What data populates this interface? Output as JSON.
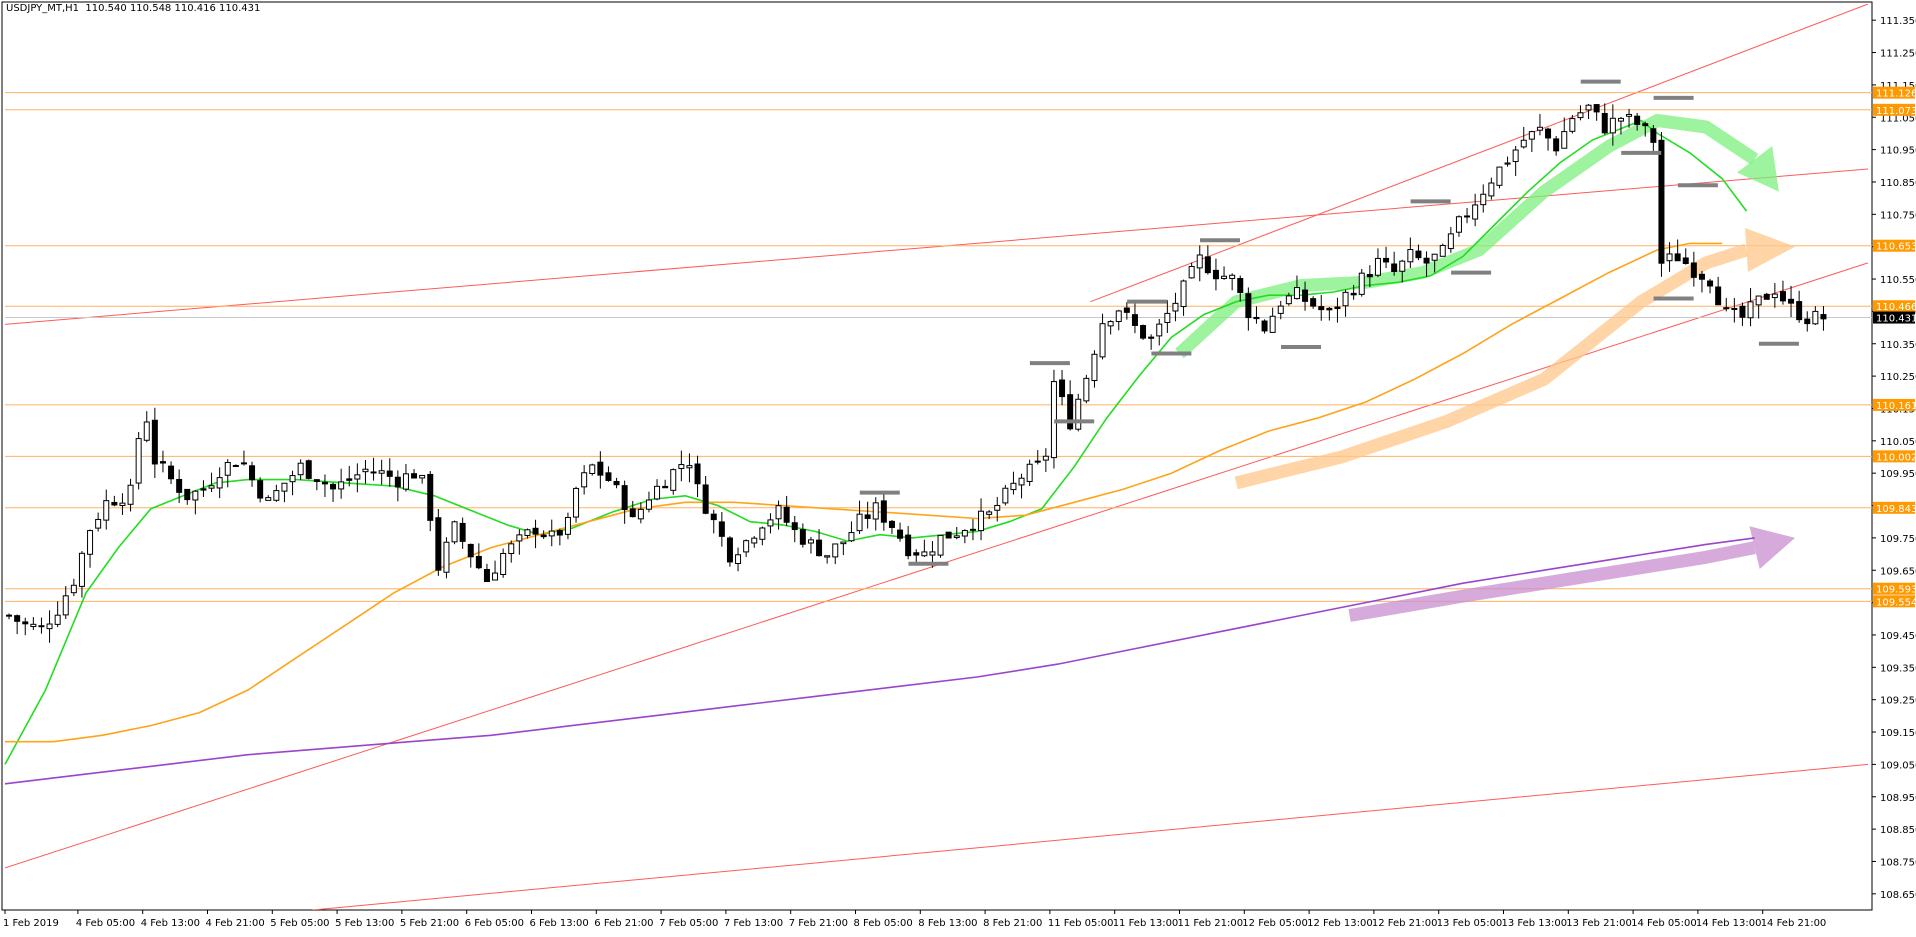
{
  "header": {
    "symbol": "USDJPY_MT,H1",
    "ohlc": "110.540 110.548 110.416 110.431"
  },
  "colors": {
    "background": "#ffffff",
    "candle": "#000000",
    "ma_fast": "#22dd22",
    "ma_mid": "#ffa31a",
    "ma_slow": "#9a44cc",
    "channel": "#ff5a5a",
    "level": "#ffb060",
    "level_tag": "#ff9900",
    "price_tag": "#000000",
    "grid_text": "#000000",
    "arrow_green": "#7ef07e",
    "arrow_orange": "#ffc78a",
    "arrow_purple": "#c88fd0",
    "swing_marker": "#808080"
  },
  "chart_data": {
    "type": "candlestick",
    "title": "USDJPY_MT,H1",
    "ylim": [
      108.6,
      111.4
    ],
    "y_ticks": [
      "111.350",
      "111.250",
      "111.150",
      "111.050",
      "110.950",
      "110.850",
      "110.750",
      "110.650",
      "110.550",
      "110.450",
      "110.350",
      "110.250",
      "110.150",
      "110.050",
      "109.950",
      "109.850",
      "109.750",
      "109.650",
      "109.550",
      "109.450",
      "109.350",
      "109.250",
      "109.150",
      "109.050",
      "108.950",
      "108.850",
      "108.750",
      "108.650"
    ],
    "x_ticks": [
      {
        "label": "1 Feb 2019",
        "t": 0
      },
      {
        "label": "4 Feb 05:00",
        "t": 9
      },
      {
        "label": "4 Feb 13:00",
        "t": 17
      },
      {
        "label": "4 Feb 21:00",
        "t": 25
      },
      {
        "label": "5 Feb 05:00",
        "t": 33
      },
      {
        "label": "5 Feb 13:00",
        "t": 41
      },
      {
        "label": "5 Feb 21:00",
        "t": 49
      },
      {
        "label": "6 Feb 05:00",
        "t": 57
      },
      {
        "label": "6 Feb 13:00",
        "t": 65
      },
      {
        "label": "6 Feb 21:00",
        "t": 73
      },
      {
        "label": "7 Feb 05:00",
        "t": 81
      },
      {
        "label": "7 Feb 13:00",
        "t": 89
      },
      {
        "label": "7 Feb 21:00",
        "t": 97
      },
      {
        "label": "8 Feb 05:00",
        "t": 105
      },
      {
        "label": "8 Feb 13:00",
        "t": 113
      },
      {
        "label": "8 Feb 21:00",
        "t": 121
      },
      {
        "label": "11 Feb 05:00",
        "t": 129
      },
      {
        "label": "11 Feb 13:00",
        "t": 137
      },
      {
        "label": "11 Feb 21:00",
        "t": 145
      },
      {
        "label": "12 Feb 05:00",
        "t": 153
      },
      {
        "label": "12 Feb 13:00",
        "t": 161
      },
      {
        "label": "12 Feb 21:00",
        "t": 169
      },
      {
        "label": "13 Feb 05:00",
        "t": 177
      },
      {
        "label": "13 Feb 13:00",
        "t": 185
      },
      {
        "label": "13 Feb 21:00",
        "t": 193
      },
      {
        "label": "14 Feb 05:00",
        "t": 201
      },
      {
        "label": "14 Feb 13:00",
        "t": 209
      },
      {
        "label": "14 Feb 21:00",
        "t": 217
      }
    ],
    "last_t": 224,
    "close_anchors": [
      [
        0,
        109.51
      ],
      [
        2,
        109.48
      ],
      [
        4,
        109.47
      ],
      [
        6,
        109.53
      ],
      [
        8,
        109.62
      ],
      [
        10,
        109.78
      ],
      [
        12,
        109.86
      ],
      [
        15,
        109.89
      ],
      [
        16,
        110.06
      ],
      [
        17,
        110.12
      ],
      [
        18,
        109.99
      ],
      [
        20,
        109.93
      ],
      [
        22,
        109.88
      ],
      [
        24,
        109.9
      ],
      [
        26,
        109.96
      ],
      [
        28,
        109.99
      ],
      [
        29,
        109.98
      ],
      [
        30,
        109.93
      ],
      [
        32,
        109.86
      ],
      [
        34,
        109.92
      ],
      [
        36,
        109.97
      ],
      [
        38,
        109.94
      ],
      [
        40,
        109.9
      ],
      [
        42,
        109.93
      ],
      [
        44,
        109.96
      ],
      [
        46,
        109.95
      ],
      [
        48,
        109.93
      ],
      [
        50,
        109.95
      ],
      [
        51,
        109.92
      ],
      [
        52,
        109.82
      ],
      [
        53,
        109.66
      ],
      [
        55,
        109.78
      ],
      [
        57,
        109.7
      ],
      [
        59,
        109.62
      ],
      [
        61,
        109.7
      ],
      [
        63,
        109.74
      ],
      [
        65,
        109.78
      ],
      [
        67,
        109.75
      ],
      [
        69,
        109.79
      ],
      [
        70,
        109.9
      ],
      [
        72,
        109.97
      ],
      [
        74,
        109.93
      ],
      [
        76,
        109.86
      ],
      [
        77,
        109.8
      ],
      [
        79,
        109.88
      ],
      [
        81,
        109.93
      ],
      [
        83,
        109.98
      ],
      [
        84,
        109.99
      ],
      [
        85,
        109.9
      ],
      [
        87,
        109.8
      ],
      [
        89,
        109.7
      ],
      [
        91,
        109.74
      ],
      [
        93,
        109.8
      ],
      [
        95,
        109.83
      ],
      [
        97,
        109.77
      ],
      [
        99,
        109.73
      ],
      [
        101,
        109.7
      ],
      [
        103,
        109.74
      ],
      [
        105,
        109.8
      ],
      [
        107,
        109.84
      ],
      [
        109,
        109.79
      ],
      [
        111,
        109.72
      ],
      [
        113,
        109.7
      ],
      [
        115,
        109.75
      ],
      [
        117,
        109.77
      ],
      [
        119,
        109.8
      ],
      [
        121,
        109.82
      ],
      [
        123,
        109.88
      ],
      [
        125,
        109.94
      ],
      [
        127,
        109.97
      ],
      [
        128,
        110.01
      ],
      [
        129,
        110.23
      ],
      [
        130,
        110.17
      ],
      [
        131,
        110.11
      ],
      [
        133,
        110.25
      ],
      [
        135,
        110.42
      ],
      [
        137,
        110.46
      ],
      [
        139,
        110.4
      ],
      [
        141,
        110.36
      ],
      [
        143,
        110.44
      ],
      [
        145,
        110.52
      ],
      [
        147,
        110.61
      ],
      [
        149,
        110.57
      ],
      [
        151,
        110.55
      ],
      [
        153,
        110.45
      ],
      [
        155,
        110.4
      ],
      [
        157,
        110.48
      ],
      [
        159,
        110.5
      ],
      [
        161,
        110.47
      ],
      [
        163,
        110.44
      ],
      [
        165,
        110.5
      ],
      [
        167,
        110.55
      ],
      [
        169,
        110.6
      ],
      [
        171,
        110.57
      ],
      [
        173,
        110.62
      ],
      [
        175,
        110.6
      ],
      [
        177,
        110.63
      ],
      [
        179,
        110.72
      ],
      [
        181,
        110.79
      ],
      [
        183,
        110.86
      ],
      [
        185,
        110.92
      ],
      [
        187,
        110.98
      ],
      [
        189,
        111.01
      ],
      [
        191,
        110.96
      ],
      [
        193,
        111.05
      ],
      [
        195,
        111.08
      ],
      [
        197,
        111.02
      ],
      [
        199,
        111.05
      ],
      [
        201,
        111.03
      ],
      [
        203,
        110.98
      ],
      [
        204,
        110.6
      ],
      [
        206,
        110.62
      ],
      [
        208,
        110.58
      ],
      [
        210,
        110.55
      ],
      [
        212,
        110.44
      ],
      [
        214,
        110.43
      ],
      [
        216,
        110.48
      ],
      [
        218,
        110.52
      ],
      [
        220,
        110.46
      ],
      [
        222,
        110.43
      ],
      [
        224,
        110.431
      ]
    ],
    "series": [
      {
        "name": "",
        "color": "#22dd22",
        "points": [
          [
            0,
            109.05
          ],
          [
            5,
            109.28
          ],
          [
            10,
            109.58
          ],
          [
            14,
            109.72
          ],
          [
            18,
            109.84
          ],
          [
            22,
            109.88
          ],
          [
            26,
            109.92
          ],
          [
            30,
            109.93
          ],
          [
            36,
            109.93
          ],
          [
            42,
            109.92
          ],
          [
            48,
            109.91
          ],
          [
            53,
            109.88
          ],
          [
            57,
            109.84
          ],
          [
            62,
            109.79
          ],
          [
            66,
            109.76
          ],
          [
            70,
            109.78
          ],
          [
            75,
            109.83
          ],
          [
            80,
            109.87
          ],
          [
            84,
            109.88
          ],
          [
            88,
            109.85
          ],
          [
            92,
            109.8
          ],
          [
            96,
            109.79
          ],
          [
            100,
            109.77
          ],
          [
            104,
            109.74
          ],
          [
            108,
            109.76
          ],
          [
            112,
            109.75
          ],
          [
            116,
            109.76
          ],
          [
            120,
            109.77
          ],
          [
            124,
            109.8
          ],
          [
            128,
            109.84
          ],
          [
            132,
            109.97
          ],
          [
            136,
            110.12
          ],
          [
            140,
            110.25
          ],
          [
            144,
            110.37
          ],
          [
            148,
            110.44
          ],
          [
            152,
            110.48
          ],
          [
            156,
            110.5
          ],
          [
            160,
            110.5
          ],
          [
            164,
            110.51
          ],
          [
            168,
            110.53
          ],
          [
            172,
            110.54
          ],
          [
            176,
            110.56
          ],
          [
            180,
            110.62
          ],
          [
            184,
            110.72
          ],
          [
            188,
            110.82
          ],
          [
            192,
            110.91
          ],
          [
            196,
            110.98
          ],
          [
            200,
            111.02
          ],
          [
            202,
            111.04
          ],
          [
            204,
            111.0
          ],
          [
            208,
            110.94
          ],
          [
            212,
            110.86
          ],
          [
            215,
            110.76
          ]
        ]
      },
      {
        "name": "",
        "color": "#ffa31a",
        "points": [
          [
            0,
            109.12
          ],
          [
            6,
            109.12
          ],
          [
            12,
            109.14
          ],
          [
            18,
            109.17
          ],
          [
            24,
            109.21
          ],
          [
            30,
            109.28
          ],
          [
            36,
            109.38
          ],
          [
            42,
            109.48
          ],
          [
            48,
            109.58
          ],
          [
            54,
            109.66
          ],
          [
            60,
            109.72
          ],
          [
            66,
            109.76
          ],
          [
            72,
            109.8
          ],
          [
            78,
            109.84
          ],
          [
            84,
            109.86
          ],
          [
            90,
            109.86
          ],
          [
            96,
            109.85
          ],
          [
            102,
            109.84
          ],
          [
            108,
            109.83
          ],
          [
            114,
            109.82
          ],
          [
            120,
            109.81
          ],
          [
            126,
            109.82
          ],
          [
            132,
            109.86
          ],
          [
            138,
            109.9
          ],
          [
            144,
            109.95
          ],
          [
            150,
            110.02
          ],
          [
            156,
            110.08
          ],
          [
            162,
            110.12
          ],
          [
            168,
            110.17
          ],
          [
            174,
            110.24
          ],
          [
            180,
            110.32
          ],
          [
            186,
            110.41
          ],
          [
            192,
            110.49
          ],
          [
            198,
            110.57
          ],
          [
            204,
            110.64
          ],
          [
            208,
            110.66
          ],
          [
            212,
            110.66
          ]
        ]
      },
      {
        "name": "",
        "color": "#9a44cc",
        "points": [
          [
            0,
            108.99
          ],
          [
            10,
            109.02
          ],
          [
            20,
            109.05
          ],
          [
            30,
            109.08
          ],
          [
            40,
            109.1
          ],
          [
            50,
            109.12
          ],
          [
            60,
            109.14
          ],
          [
            70,
            109.17
          ],
          [
            80,
            109.2
          ],
          [
            90,
            109.23
          ],
          [
            100,
            109.26
          ],
          [
            110,
            109.29
          ],
          [
            120,
            109.32
          ],
          [
            130,
            109.36
          ],
          [
            140,
            109.41
          ],
          [
            150,
            109.46
          ],
          [
            160,
            109.51
          ],
          [
            170,
            109.56
          ],
          [
            180,
            109.61
          ],
          [
            190,
            109.65
          ],
          [
            200,
            109.69
          ],
          [
            210,
            109.73
          ],
          [
            216,
            109.75
          ]
        ]
      }
    ],
    "channels": [
      {
        "from": [
          0,
          108.73
        ],
        "to": [
          230,
          110.6
        ]
      },
      {
        "from": [
          0,
          110.41
        ],
        "to": [
          230,
          110.89
        ]
      },
      {
        "from": [
          134,
          110.48
        ],
        "to": [
          230,
          111.4
        ]
      },
      {
        "from": [
          38,
          108.6
        ],
        "to": [
          230,
          109.05
        ]
      }
    ],
    "levels": [
      {
        "value": 111.126,
        "tag": "111.126"
      },
      {
        "value": 111.073,
        "tag": "111.073"
      },
      {
        "value": 110.653,
        "tag": "110.653"
      },
      {
        "value": 110.466,
        "tag": "110.466"
      },
      {
        "value": 110.161,
        "tag": "110.161"
      },
      {
        "value": 110.002,
        "tag": "110.002"
      },
      {
        "value": 109.843,
        "tag": "109.843"
      },
      {
        "value": 109.593,
        "tag": "109.593"
      },
      {
        "value": 109.554,
        "tag": "109.554"
      }
    ],
    "current_price": {
      "value": 110.431,
      "tag": "110.431"
    },
    "swing_markers": [
      {
        "t": 108,
        "value": 109.89
      },
      {
        "t": 114,
        "value": 109.67
      },
      {
        "t": 129,
        "value": 110.29
      },
      {
        "t": 132,
        "value": 110.11
      },
      {
        "t": 141,
        "value": 110.48
      },
      {
        "t": 144,
        "value": 110.32
      },
      {
        "t": 150,
        "value": 110.67
      },
      {
        "t": 160,
        "value": 110.34
      },
      {
        "t": 176,
        "value": 110.79
      },
      {
        "t": 181,
        "value": 110.57
      },
      {
        "t": 197,
        "value": 111.16
      },
      {
        "t": 202,
        "value": 110.94
      },
      {
        "t": 206,
        "value": 111.11
      },
      {
        "t": 206,
        "value": 110.49
      },
      {
        "t": 209,
        "value": 110.84
      },
      {
        "t": 219,
        "value": 110.35
      }
    ],
    "trend_arrows": [
      {
        "color": "#7ef07e",
        "points": [
          [
            145,
            110.32
          ],
          [
            152,
            110.48
          ],
          [
            160,
            110.53
          ],
          [
            168,
            110.54
          ],
          [
            175,
            110.57
          ],
          [
            182,
            110.64
          ],
          [
            190,
            110.82
          ],
          [
            198,
            110.96
          ],
          [
            204,
            111.04
          ],
          [
            210,
            111.02
          ],
          [
            216,
            110.92
          ]
        ],
        "head_to": [
          219,
          110.82
        ]
      },
      {
        "color": "#ffc78a",
        "points": [
          [
            152,
            109.92
          ],
          [
            165,
            110.0
          ],
          [
            178,
            110.11
          ],
          [
            190,
            110.24
          ],
          [
            202,
            110.48
          ],
          [
            210,
            110.6
          ],
          [
            215,
            110.64
          ]
        ],
        "head_to": [
          221,
          110.65
        ]
      },
      {
        "color": "#c88fd0",
        "points": [
          [
            166,
            109.51
          ],
          [
            180,
            109.57
          ],
          [
            195,
            109.63
          ],
          [
            210,
            109.69
          ],
          [
            216,
            109.72
          ]
        ],
        "head_to": [
          221,
          109.75
        ]
      }
    ]
  }
}
